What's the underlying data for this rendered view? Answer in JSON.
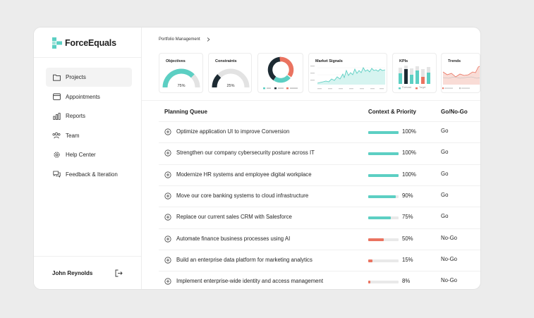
{
  "brand": {
    "name": "ForceEquals",
    "color": "#5ccfc3"
  },
  "nav": [
    {
      "label": "Projects",
      "icon": "folder-icon",
      "active": true
    },
    {
      "label": "Appointments",
      "icon": "calendar-icon",
      "active": false
    },
    {
      "label": "Reports",
      "icon": "bar-chart-icon",
      "active": false
    },
    {
      "label": "Team",
      "icon": "team-icon",
      "active": false
    },
    {
      "label": "Help Center",
      "icon": "gear-icon",
      "active": false
    },
    {
      "label": "Feedback & Iteration",
      "icon": "chat-icon",
      "active": false
    }
  ],
  "user": {
    "name": "John Reynolds",
    "logout_icon": "logout-icon"
  },
  "breadcrumb": {
    "label": "Portfolio Management",
    "icon": "chevron-right-icon"
  },
  "colors": {
    "teal": "#5ccfc3",
    "coral": "#ea7360",
    "dark": "#1d2b33",
    "gray": "#dcdcdc"
  },
  "cards": {
    "objectives": {
      "title": "Objectives",
      "value_label": "75%",
      "value": 75
    },
    "constraints": {
      "title": "Constraints",
      "value_label": "25%",
      "value": 25
    },
    "market_signals": {
      "title": "Market Signals"
    },
    "kpis": {
      "title": "KPIs",
      "legend": [
        "Forecast",
        "Target"
      ]
    },
    "trends": {
      "title": "Trends"
    }
  },
  "table": {
    "headers": {
      "queue": "Planning Queue",
      "context": "Context & Priority",
      "go": "Go/No-Go"
    },
    "rows": [
      {
        "task": "Optimize application UI to improve Conversion",
        "pct_label": "100%",
        "pct": 100,
        "decision": "Go",
        "color": "#5ccfc3"
      },
      {
        "task": "Strengthen our company cybersecurity posture across IT",
        "pct_label": "100%",
        "pct": 100,
        "decision": "Go",
        "color": "#5ccfc3"
      },
      {
        "task": "Modernize HR systems and employee digital workplace",
        "pct_label": "100%",
        "pct": 100,
        "decision": "Go",
        "color": "#5ccfc3"
      },
      {
        "task": "Move our core banking systems to cloud infrastructure",
        "pct_label": "90%",
        "pct": 90,
        "decision": "Go",
        "color": "#5ccfc3"
      },
      {
        "task": "Replace our current sales CRM with Salesforce",
        "pct_label": "75%",
        "pct": 75,
        "decision": "Go",
        "color": "#5ccfc3"
      },
      {
        "task": "Automate finance business processes using AI",
        "pct_label": "50%",
        "pct": 50,
        "decision": "No-Go",
        "color": "#ea7360"
      },
      {
        "task": "Build an enterprise data platform for marketing analytics",
        "pct_label": "15%",
        "pct": 15,
        "decision": "No-Go",
        "color": "#ea7360"
      },
      {
        "task": "Implement enterprise-wide identity and access management",
        "pct_label": "8%",
        "pct": 8,
        "decision": "No-Go",
        "color": "#ea7360"
      }
    ]
  }
}
